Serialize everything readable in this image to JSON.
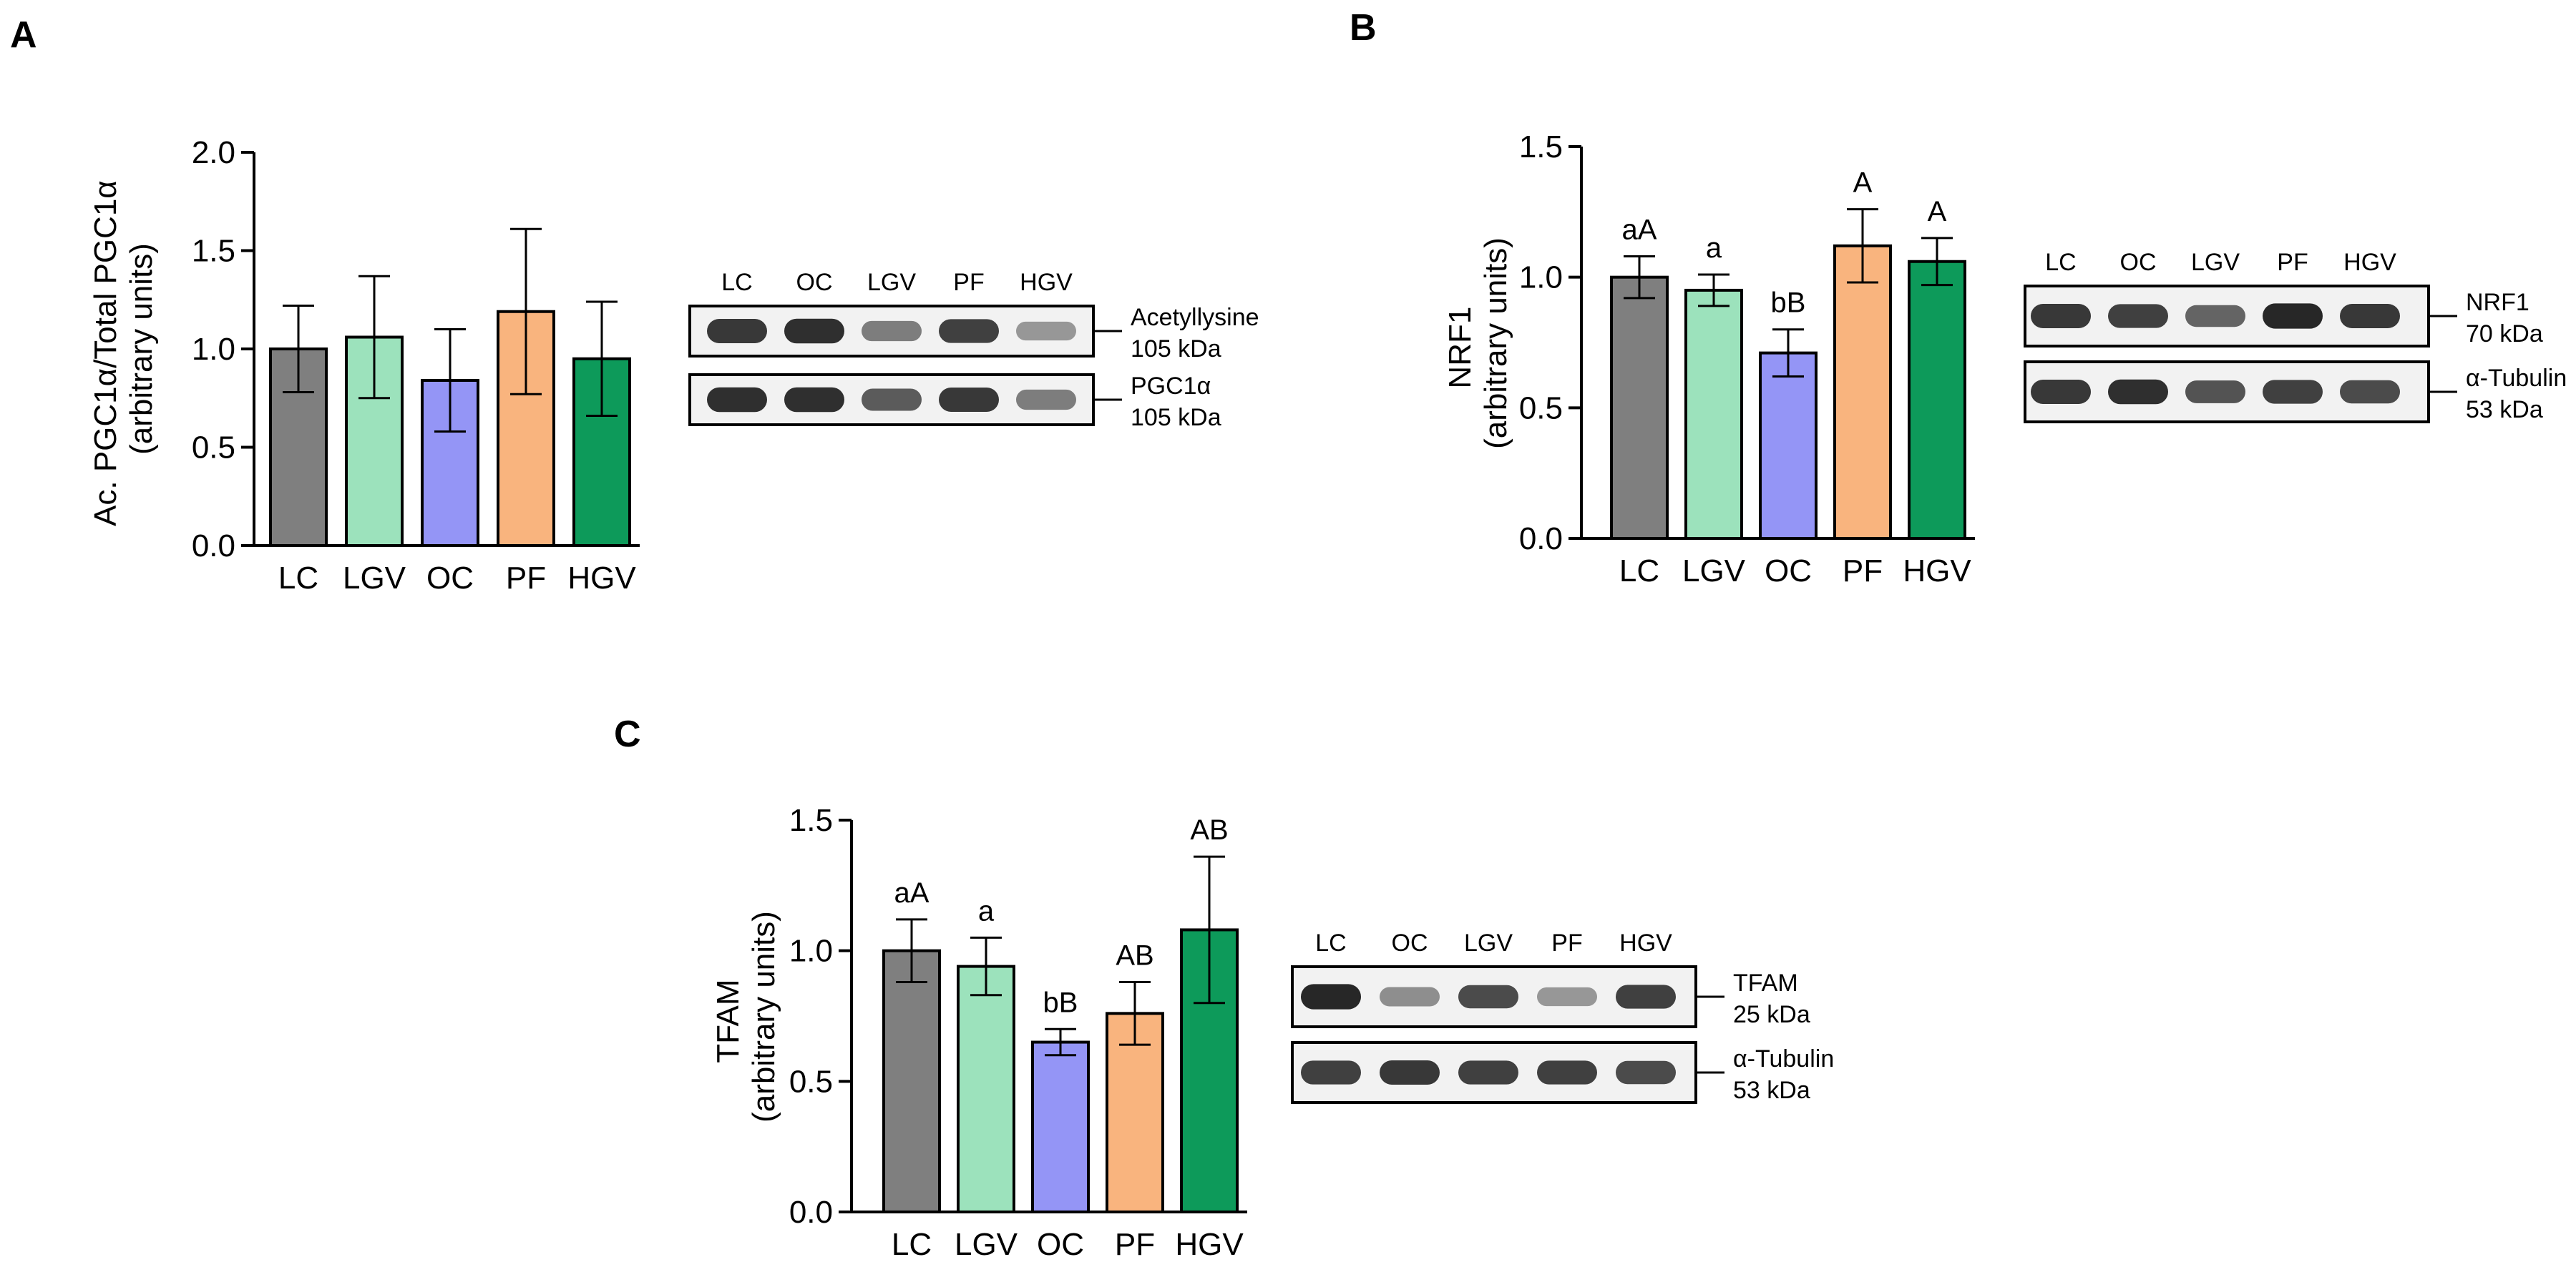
{
  "colors": {
    "LC": "#7f7f7f",
    "LGV": "#9ce2bc",
    "OC": "#9495f6",
    "PF": "#f9b47e",
    "HGV": "#0d9a5a",
    "axis": "#000000",
    "blot_bg": "#f2f2f2",
    "band": "#1e1e1e"
  },
  "chart_data": [
    {
      "type": "bar",
      "panel": "A",
      "ylabel_lines": [
        "Ac. PGC1α/Total PGC1α",
        "(arbitrary units)"
      ],
      "categories": [
        "LC",
        "LGV",
        "OC",
        "PF",
        "HGV"
      ],
      "values": [
        1.0,
        1.06,
        0.84,
        1.19,
        0.95
      ],
      "errors": [
        0.22,
        0.31,
        0.26,
        0.42,
        0.29
      ],
      "sig_labels": [
        "",
        "",
        "",
        "",
        ""
      ],
      "ylim": [
        0,
        2.0
      ],
      "yticks": [
        "0.0",
        "0.5",
        "1.0",
        "1.5",
        "2.0"
      ],
      "blot": {
        "lanes": [
          "LC",
          "OC",
          "LGV",
          "PF",
          "HGV"
        ],
        "rows": [
          {
            "label": "Acetyllysine",
            "kda": "105 kDa",
            "intensity": [
              0.85,
              0.9,
              0.45,
              0.8,
              0.3
            ]
          },
          {
            "label": "PGC1α",
            "kda": "105 kDa",
            "intensity": [
              0.9,
              0.9,
              0.65,
              0.85,
              0.45
            ]
          }
        ]
      }
    },
    {
      "type": "bar",
      "panel": "B",
      "ylabel_lines": [
        "NRF1",
        "(arbitrary units)"
      ],
      "categories": [
        "LC",
        "LGV",
        "OC",
        "PF",
        "HGV"
      ],
      "values": [
        1.0,
        0.95,
        0.71,
        1.12,
        1.06
      ],
      "errors": [
        0.08,
        0.06,
        0.09,
        0.14,
        0.09
      ],
      "sig_labels": [
        "aA",
        "a",
        "bB",
        "A",
        "A"
      ],
      "ylim": [
        0,
        1.5
      ],
      "yticks": [
        "0.0",
        "0.5",
        "1.0",
        "1.5"
      ],
      "blot": {
        "lanes": [
          "LC",
          "OC",
          "LGV",
          "PF",
          "HGV"
        ],
        "rows": [
          {
            "label": "NRF1",
            "kda": "70 kDa",
            "intensity": [
              0.85,
              0.8,
              0.6,
              0.95,
              0.85
            ]
          },
          {
            "label": "α-Tubulin",
            "kda": "53 kDa",
            "intensity": [
              0.85,
              0.9,
              0.7,
              0.8,
              0.75
            ]
          }
        ]
      }
    },
    {
      "type": "bar",
      "panel": "C",
      "ylabel_lines": [
        "TFAM",
        "(arbitrary units)"
      ],
      "categories": [
        "LC",
        "LGV",
        "OC",
        "PF",
        "HGV"
      ],
      "values": [
        1.0,
        0.94,
        0.65,
        0.76,
        1.08
      ],
      "errors": [
        0.12,
        0.11,
        0.05,
        0.12,
        0.28
      ],
      "sig_labels": [
        "aA",
        "a",
        "bB",
        "AB",
        "AB"
      ],
      "ylim": [
        0,
        1.5
      ],
      "yticks": [
        "0.0",
        "0.5",
        "1.0",
        "1.5"
      ],
      "blot": {
        "lanes": [
          "LC",
          "OC",
          "LGV",
          "PF",
          "HGV"
        ],
        "rows": [
          {
            "label": "TFAM",
            "kda": "25 kDa",
            "intensity": [
              0.95,
              0.35,
              0.75,
              0.3,
              0.8
            ]
          },
          {
            "label": "α-Tubulin",
            "kda": "53 kDa",
            "intensity": [
              0.8,
              0.85,
              0.8,
              0.8,
              0.75
            ]
          }
        ]
      }
    }
  ]
}
